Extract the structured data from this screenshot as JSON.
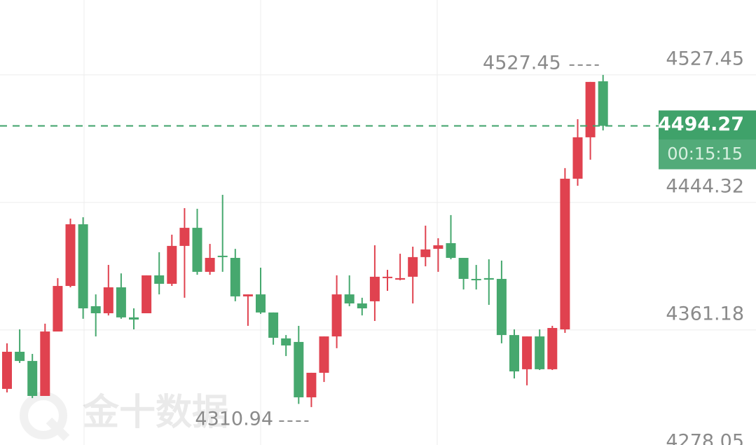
{
  "chart_data": {
    "type": "candlestick",
    "watermark": "金十数据",
    "countdown": "00:15:15",
    "up_color": "#e0424f",
    "down_color": "#46a86e",
    "price_line_color": "#3fa26a",
    "open": [
      4322.8,
      4347.0,
      4341.0,
      4318.2,
      4360.2,
      4389.9,
      4430.1,
      4376.7,
      4372.1,
      4389.0,
      4369.4,
      4372.1,
      4396.8,
      4391.3,
      4416.0,
      4427.8,
      4399.1,
      4409.6,
      4408.2,
      4383.1,
      4384.4,
      4372.6,
      4355.7,
      4353.4,
      4317.3,
      4333.3,
      4357.0,
      4384.4,
      4378.5,
      4379.9,
      4395.0,
      4394.0,
      4395.9,
      4408.7,
      4414.1,
      4417.8,
      4408.2,
      4394.5,
      4395.0,
      4394.5,
      4357.9,
      4335.6,
      4357.0,
      4335.6,
      4361.6,
      4459.8,
      4486.8,
      4523.3
    ],
    "high": [
      4352.5,
      4361.6,
      4345.6,
      4365.3,
      4395.0,
      4433.8,
      4434.7,
      4384.4,
      4403.6,
      4398.1,
      4375.3,
      4396.8,
      4411.9,
      4423.3,
      4440.6,
      4440.2,
      4417.3,
      4449.3,
      4414.1,
      4384.4,
      4401.8,
      4372.6,
      4357.9,
      4363.9,
      4333.3,
      4357.0,
      4396.8,
      4396.8,
      4382.2,
      4416.4,
      4400.4,
      4410.9,
      4415.5,
      4429.2,
      4421.0,
      4436.1,
      4408.2,
      4403.6,
      4407.3,
      4406.4,
      4361.6,
      4357.0,
      4361.6,
      4363.9,
      4466.7,
      4498.6,
      4522.9,
      4527.45
    ],
    "low": [
      4320.5,
      4339.7,
      4316.8,
      4318.2,
      4360.2,
      4389.0,
      4368.5,
      4357.0,
      4370.7,
      4368.5,
      4361.6,
      4372.1,
      4384.4,
      4389.9,
      4382.2,
      4397.2,
      4397.2,
      4399.1,
      4379.9,
      4363.9,
      4371.7,
      4351.6,
      4344.2,
      4313.0,
      4310.94,
      4327.3,
      4349.3,
      4376.7,
      4370.7,
      4367.1,
      4386.7,
      4393.6,
      4378.5,
      4402.7,
      4399.1,
      4407.3,
      4387.6,
      4387.6,
      4377.6,
      4352.5,
      4329.6,
      4325.1,
      4335.1,
      4335.1,
      4359.3,
      4455.2,
      4472.2,
      4491.3
    ],
    "close": [
      4347.0,
      4341.0,
      4318.2,
      4360.2,
      4389.9,
      4430.1,
      4375.3,
      4372.1,
      4389.0,
      4369.4,
      4368.0,
      4396.8,
      4391.3,
      4416.0,
      4427.8,
      4399.1,
      4408.2,
      4408.7,
      4383.1,
      4384.4,
      4372.6,
      4356.1,
      4351.1,
      4317.3,
      4333.3,
      4357.0,
      4384.4,
      4378.5,
      4375.3,
      4395.9,
      4395.9,
      4395.0,
      4408.7,
      4413.7,
      4416.4,
      4408.2,
      4394.5,
      4393.6,
      4394.0,
      4357.9,
      4334.2,
      4357.0,
      4335.6,
      4362.5,
      4459.8,
      4486.8,
      4522.9,
      4494.27
    ],
    "ylim": [
      4274.8,
      4576.3
    ],
    "yticks": [
      4527.45,
      4444.32,
      4361.18,
      4278.05
    ],
    "grid": true
  }
}
